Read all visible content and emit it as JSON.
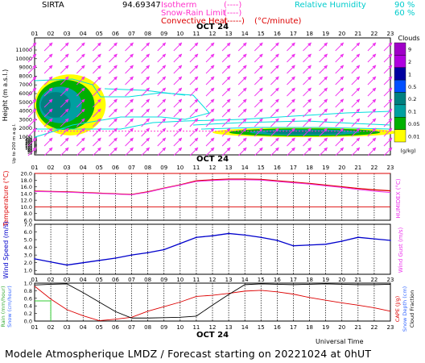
{
  "header": {
    "station": "SIRTA",
    "coords": "94.69347",
    "legend": [
      {
        "label": "Isotherm",
        "symbol": "(----)",
        "color": "#ff33cc"
      },
      {
        "label": "Snow-Rain Limit",
        "symbol": "(----)",
        "color": "#ff33cc"
      },
      {
        "label": "Convective Heat",
        "symbol": "(-----)",
        "unit": "(°C/minute)",
        "color": "#dd0000"
      }
    ],
    "humidity_label": "Relative Humidity",
    "humidity_levels": [
      "90 %",
      "60 %"
    ],
    "humidity_color": "#00cccc"
  },
  "hours": [
    "01",
    "02",
    "03",
    "04",
    "05",
    "06",
    "07",
    "08",
    "09",
    "10",
    "11",
    "12",
    "13",
    "14",
    "15",
    "16",
    "17",
    "18",
    "19",
    "20",
    "21",
    "22",
    "23"
  ],
  "date_label": "OCT 24",
  "footer": {
    "universal_time": "Universal Time",
    "forecast_text": "Modele Atmospherique LMDZ / Forecast starting on 20221024 at 0hUT"
  },
  "chart_data": [
    {
      "type": "heatmap",
      "title": "Clouds",
      "ylabel": "Height (m a.s.l.)",
      "ylabel_sub": "Up to 200 m a.g.l.",
      "y_ticks": [
        "11000",
        "10000",
        "9000",
        "8000",
        "7000",
        "6000",
        "5000",
        "4000",
        "3000",
        "2000",
        "1000",
        "500",
        "450",
        "400",
        "350",
        "300",
        "250",
        "200",
        "180",
        "160",
        "140",
        "120",
        "100",
        "80",
        "60",
        "40",
        "20",
        "0"
      ],
      "colorbar_ticks": [
        "9",
        "2",
        "1",
        "0.5",
        "0.2",
        "0.1",
        "0.05",
        "0.01"
      ],
      "colorbar_unit": "(g/kg)",
      "colorbar_colors": [
        "#a000c8",
        "#b000e0",
        "#0000a0",
        "#0050ff",
        "#008080",
        "#00a0a0",
        "#00b000",
        "#ffff00"
      ],
      "cloud_masses": [
        {
          "x_start": "01",
          "x_end": "05",
          "height_bottom_m": 1200,
          "height_top_m": 8200,
          "max_content_gkg": 0.5
        },
        {
          "x_start": "12",
          "x_end": "23",
          "height_bottom_m": 1000,
          "height_top_m": 2100,
          "max_content_gkg": 0.5
        }
      ]
    },
    {
      "type": "line",
      "xlabel": "",
      "ylabel": "Temperature (°C)",
      "ylabel_right": "HUMIDEX (°C)",
      "y_ticks": [
        "20.0",
        "18.0",
        "16.0",
        "14.0",
        "12.0",
        "10.0",
        "8.0",
        "6.0"
      ],
      "ylim": [
        6,
        20
      ],
      "series": [
        {
          "values": [
            14.7,
            14.6,
            14.5,
            14.3,
            14.1,
            13.9,
            13.7,
            14.5,
            15.6,
            16.6,
            17.8,
            18.1,
            18.3,
            18.3,
            18.2,
            17.8,
            17.4,
            17.0,
            16.5,
            16.0,
            15.5,
            15.1,
            14.8
          ]
        },
        {
          "values": [
            14.6,
            14.5,
            14.4,
            14.2,
            14.0,
            13.8,
            13.6,
            14.4,
            15.5,
            16.5,
            17.6,
            17.9,
            18.1,
            18.1,
            18.0,
            17.6,
            17.2,
            16.8,
            16.3,
            15.8,
            15.2,
            14.7,
            14.3
          ]
        }
      ]
    },
    {
      "type": "line",
      "ylabel": "Wind Speed (m/s)",
      "ylabel_right": "Wind Gust (m/s)",
      "y_ticks": [
        "7.0",
        "6.0",
        "5.0",
        "4.0",
        "3.0",
        "2.0",
        "1.0"
      ],
      "ylim": [
        0.5,
        7
      ],
      "series": [
        {
          "values": [
            2.5,
            2.1,
            1.7,
            2.0,
            2.3,
            2.6,
            3.0,
            3.3,
            3.7,
            4.5,
            5.3,
            5.5,
            5.8,
            5.6,
            5.3,
            4.9,
            4.2,
            4.3,
            4.4,
            4.8,
            5.3,
            5.1,
            4.9
          ]
        }
      ]
    },
    {
      "type": "line",
      "ylabel": "Rain (mm/hour)",
      "ylabel_sub": "Snow (cm/hour)",
      "ylabel_right": "CAPE (J/g)",
      "ylabel_right2": "Snow Depth (cm)",
      "ylabel_right3": "Cloud Fraction",
      "y_ticks": [
        "1.0",
        "0.8",
        "0.6",
        "0.4",
        "0.2",
        "0.0"
      ],
      "ylim": [
        0,
        1
      ],
      "series": [
        {
          "values": [
            0.92,
            0.58,
            0.3,
            0.14,
            0.01,
            0.05,
            0.1,
            0.26,
            0.38,
            0.5,
            0.65,
            0.68,
            0.73,
            0.79,
            0.81,
            0.77,
            0.71,
            0.62,
            0.55,
            0.48,
            0.42,
            0.35,
            0.26
          ]
        },
        {
          "values": [
            0.95,
            0.97,
            0.98,
            0.75,
            0.5,
            0.25,
            0.08,
            0.08,
            0.09,
            0.1,
            0.13,
            0.42,
            0.7,
            0.96,
            0.98,
            0.97,
            0.96,
            0.97,
            0.98,
            0.97,
            0.96,
            0.96,
            0.97
          ]
        }
      ]
    }
  ]
}
